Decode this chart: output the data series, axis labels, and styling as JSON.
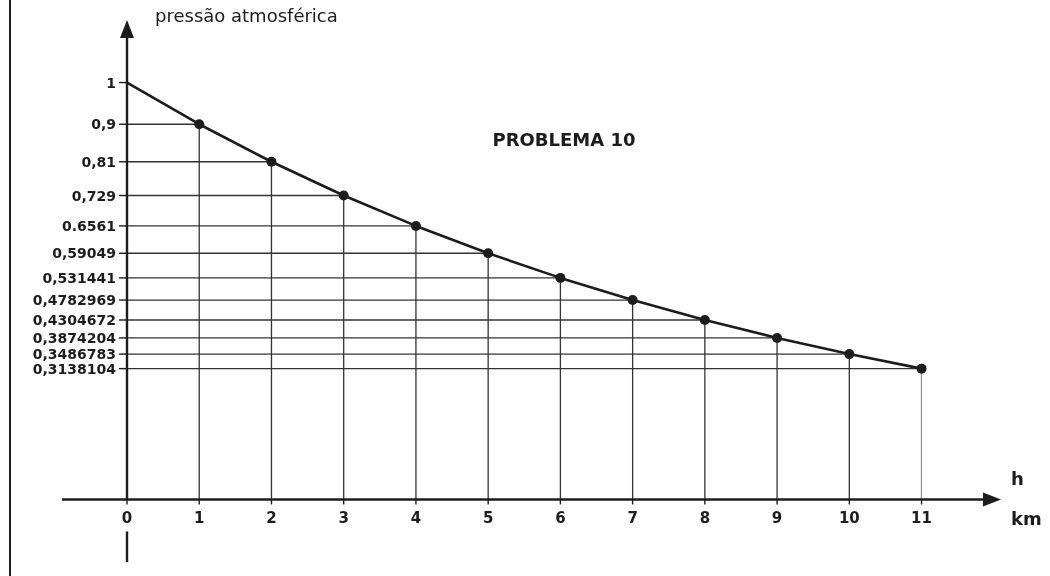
{
  "chart_data": {
    "type": "line",
    "title": "PROBLEMA 10",
    "ylabel": "pressão atmosférica",
    "xlabel": "h km",
    "xlim": [
      -0.9,
      12.1
    ],
    "ylim": [
      -0.15,
      1.15
    ],
    "xticks": [
      0,
      1,
      2,
      3,
      4,
      5,
      6,
      7,
      8,
      9,
      10,
      11
    ],
    "yticks": [
      {
        "value": 1,
        "label": "1"
      },
      {
        "value": 0.9,
        "label": "0,9"
      },
      {
        "value": 0.81,
        "label": "0,81"
      },
      {
        "value": 0.729,
        "label": "0,729"
      },
      {
        "value": 0.6561,
        "label": "0.6561"
      },
      {
        "value": 0.59049,
        "label": "0,59049"
      },
      {
        "value": 0.531441,
        "label": "0,531441"
      },
      {
        "value": 0.4782969,
        "label": "0,4782969"
      },
      {
        "value": 0.4304672,
        "label": "0,4304672"
      },
      {
        "value": 0.3874204,
        "label": "0,3874204"
      },
      {
        "value": 0.3486783,
        "label": "0,3486783"
      },
      {
        "value": 0.3138104,
        "label": "0,3138104"
      }
    ],
    "grid": true,
    "series": [
      {
        "color": "#1c1c1c",
        "x": [
          0,
          1,
          2,
          3,
          4,
          5,
          6,
          7,
          8,
          9,
          10,
          11
        ],
        "values": [
          1,
          0.9,
          0.81,
          0.729,
          0.6561,
          0.59049,
          0.531441,
          0.4782969,
          0.4304672,
          0.3874204,
          0.3486783,
          0.3138104
        ]
      },
      {
        "type": "scatter",
        "marker": "circle",
        "color": "#1c1c1c",
        "x": [
          1,
          2,
          3,
          4,
          5,
          6,
          7,
          8,
          9,
          10,
          11
        ],
        "values": [
          0.9,
          0.81,
          0.729,
          0.6561,
          0.59049,
          0.531441,
          0.4782969,
          0.4304672,
          0.3874204,
          0.3486783,
          0.3138104
        ]
      }
    ]
  }
}
